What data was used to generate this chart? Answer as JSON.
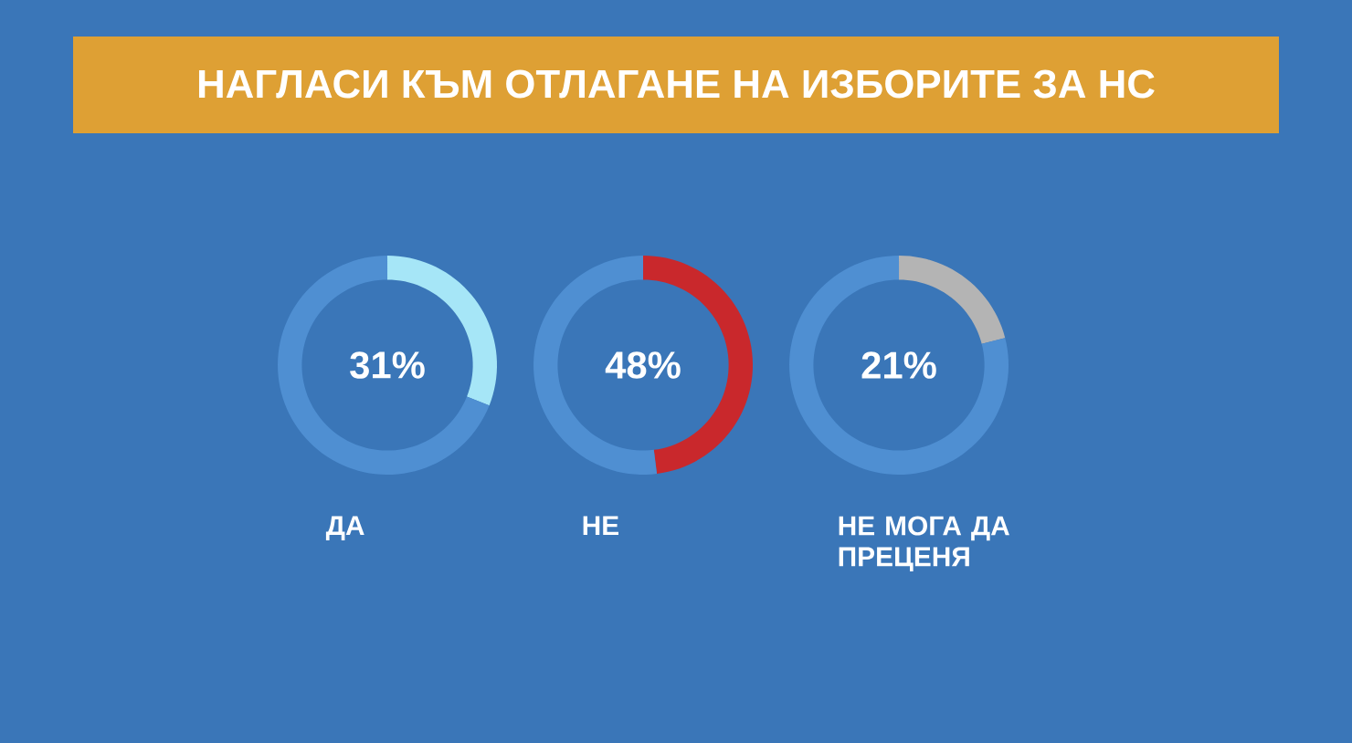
{
  "chart_data": [
    {
      "type": "donut",
      "title": "НАГЛАСИ КЪМ ОТЛАГАНЕ НА ИЗБОРИТЕ ЗА НС",
      "xlabel": "ДА",
      "categories": [
        null,
        null
      ],
      "values": [
        31,
        69
      ],
      "colors": [
        "#a6e6f7",
        "#4f8fd2"
      ],
      "annotations": [
        "31%"
      ]
    },
    {
      "type": "donut",
      "xlabel": "НЕ",
      "categories": [
        null,
        null
      ],
      "values": [
        48,
        52
      ],
      "colors": [
        "#c9282c",
        "#4f8fd2"
      ],
      "annotations": [
        "48%"
      ]
    },
    {
      "type": "donut",
      "xlabel": "НЕ МОГА ДА ПРЕЦЕНЯ",
      "categories": [
        null,
        null
      ],
      "values": [
        21,
        79
      ],
      "colors": [
        "#b4b4b4",
        "#4f8fd2"
      ],
      "annotations": [
        "21%"
      ]
    }
  ]
}
